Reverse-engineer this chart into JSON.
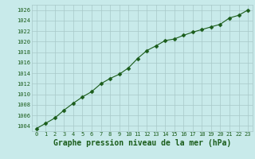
{
  "x": [
    0,
    1,
    2,
    3,
    4,
    5,
    6,
    7,
    8,
    9,
    10,
    11,
    12,
    13,
    14,
    15,
    16,
    17,
    18,
    19,
    20,
    21,
    22,
    23
  ],
  "y": [
    1003.5,
    1004.5,
    1005.5,
    1007.0,
    1008.3,
    1009.5,
    1010.5,
    1012.0,
    1013.0,
    1013.8,
    1015.0,
    1016.8,
    1018.3,
    1019.2,
    1020.2,
    1020.5,
    1021.2,
    1021.8,
    1022.3,
    1022.8,
    1023.3,
    1024.5,
    1025.0,
    1026.0
  ],
  "line_color": "#1a5c1a",
  "marker": "D",
  "marker_size": 2.5,
  "bg_color": "#c8eaea",
  "grid_color": "#a8c8c8",
  "xlabel": "Graphe pression niveau de la mer (hPa)",
  "xlabel_fontsize": 7,
  "ylim": [
    1003,
    1027
  ],
  "yticks": [
    1004,
    1006,
    1008,
    1010,
    1012,
    1014,
    1016,
    1018,
    1020,
    1022,
    1024,
    1026
  ],
  "xticks": [
    0,
    1,
    2,
    3,
    4,
    5,
    6,
    7,
    8,
    9,
    10,
    11,
    12,
    13,
    14,
    15,
    16,
    17,
    18,
    19,
    20,
    21,
    22,
    23
  ],
  "tick_fontsize": 5.0,
  "tick_color": "#1a5c1a",
  "label_color": "#1a5c1a",
  "xlim": [
    -0.5,
    23.5
  ]
}
